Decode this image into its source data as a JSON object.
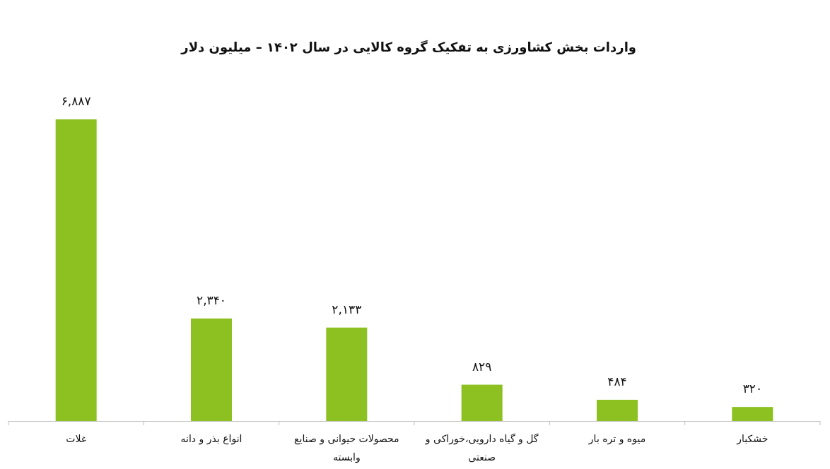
{
  "chart_data": {
    "type": "bar",
    "title": "واردات بخش کشاورزی به تفکیک گروه کالایی در سال ۱۴۰۲ – میلیون دلار",
    "categories": [
      "غلات",
      "انواع بذر و دانه",
      "محصولات حیوانی و صنایع وابسته",
      "گل و گیاه دارویی،خوراکی و صنعتی",
      "میوه و تره بار",
      "خشکبار"
    ],
    "values": [
      6887,
      2340,
      2133,
      829,
      484,
      320
    ],
    "value_labels": [
      "۶,۸۸۷",
      "۲,۳۴۰",
      "۲,۱۳۳",
      "۸۲۹",
      "۴۸۴",
      "۳۲۰"
    ],
    "color": "#8dc021"
  }
}
